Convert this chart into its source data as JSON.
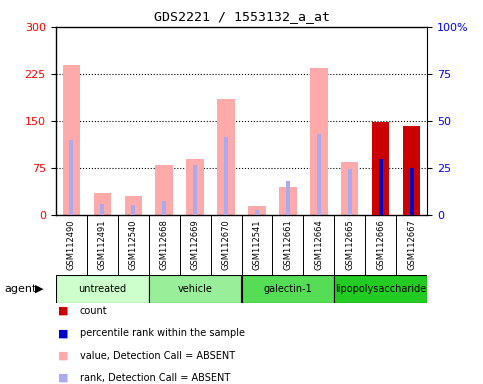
{
  "title": "GDS2221 / 1553132_a_at",
  "samples": [
    "GSM112490",
    "GSM112491",
    "GSM112540",
    "GSM112668",
    "GSM112669",
    "GSM112670",
    "GSM112541",
    "GSM112661",
    "GSM112664",
    "GSM112665",
    "GSM112666",
    "GSM112667"
  ],
  "value_absent": [
    240,
    35,
    30,
    80,
    90,
    185,
    15,
    45,
    235,
    85,
    0,
    0
  ],
  "rank_absent_left": [
    120,
    18,
    16,
    22,
    80,
    125,
    8,
    55,
    130,
    73,
    0,
    0
  ],
  "count": [
    0,
    0,
    0,
    0,
    0,
    0,
    0,
    0,
    0,
    0,
    148,
    142
  ],
  "percentile_rank_right": [
    0,
    0,
    0,
    0,
    0,
    0,
    0,
    0,
    0,
    0,
    30,
    25
  ],
  "groups": [
    {
      "label": "untreated",
      "indices": [
        0,
        1,
        2
      ],
      "color": "#ccffcc"
    },
    {
      "label": "vehicle",
      "indices": [
        3,
        4,
        5
      ],
      "color": "#99ee99"
    },
    {
      "label": "galectin-1",
      "indices": [
        6,
        7,
        8
      ],
      "color": "#55dd55"
    },
    {
      "label": "lipopolysaccharide",
      "indices": [
        9,
        10,
        11
      ],
      "color": "#22cc22"
    }
  ],
  "ylim_left": [
    0,
    300
  ],
  "ylim_right": [
    0,
    100
  ],
  "yticks_left": [
    0,
    75,
    150,
    225,
    300
  ],
  "yticks_right": [
    0,
    25,
    50,
    75,
    100
  ],
  "color_value_absent": "#ffaaaa",
  "color_rank_absent": "#aaaaee",
  "color_count": "#cc0000",
  "color_percentile": "#0000cc",
  "background_color": "#ffffff",
  "xticklabel_bg": "#d0d0d0"
}
